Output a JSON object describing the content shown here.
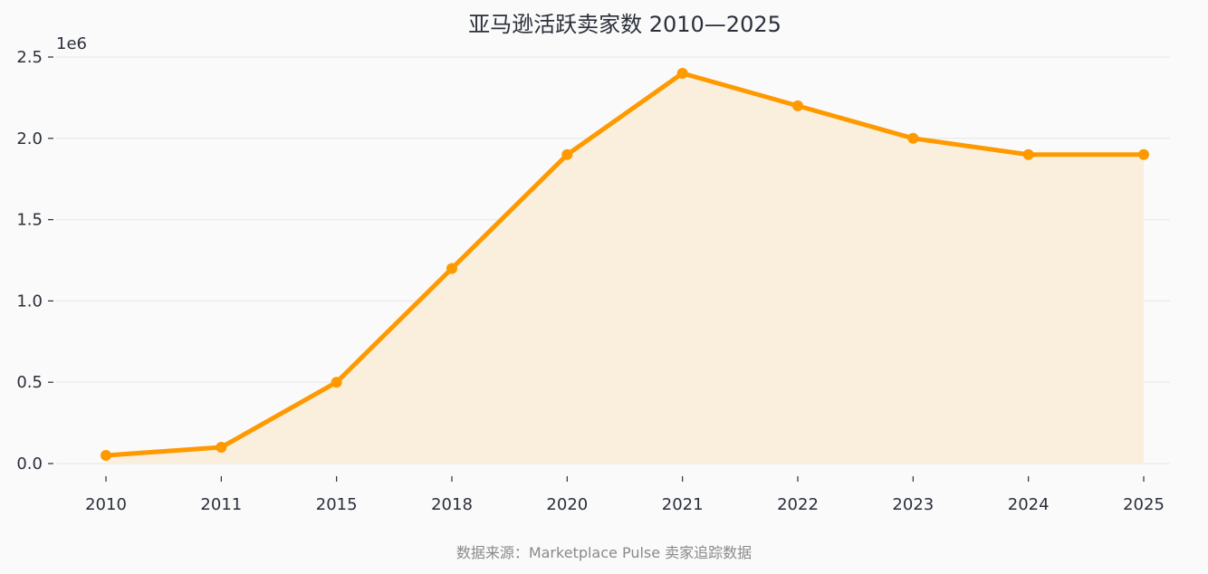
{
  "chart_data": {
    "type": "area",
    "title": "亚马逊活跃卖家数 2010—2025",
    "xlabel": "",
    "ylabel": "",
    "y_exponent_label": "1e6",
    "categories": [
      "2010",
      "2011",
      "2015",
      "2018",
      "2020",
      "2021",
      "2022",
      "2023",
      "2024",
      "2025"
    ],
    "series": [
      {
        "values": [
          50000,
          100000,
          500000,
          1200000,
          1900000,
          2400000,
          2200000,
          2000000,
          1900000,
          1900000
        ],
        "color": "#ff9900",
        "fill_color": "#faefdd"
      }
    ],
    "ylim": [
      0,
      2500000
    ],
    "yticks": [
      0,
      500000,
      1000000,
      1500000,
      2000000,
      2500000
    ],
    "ytick_labels": [
      "0.0",
      "0.5",
      "1.0",
      "1.5",
      "2.0",
      "2.5"
    ],
    "grid": true,
    "legend": "none",
    "source_note": "数据来源：Marketplace Pulse 卖家追踪数据"
  }
}
